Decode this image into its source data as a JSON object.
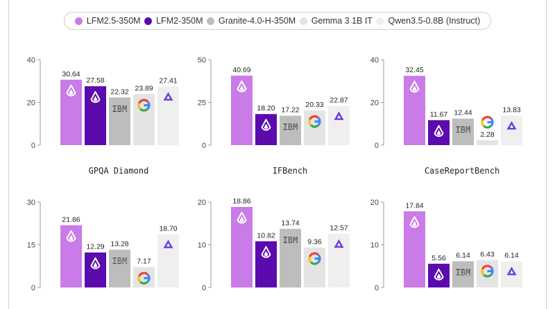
{
  "legend": {
    "items": [
      {
        "label": "LFM2.5-350M",
        "color": "#c97be8"
      },
      {
        "label": "LFM2-350M",
        "color": "#5a0aad"
      },
      {
        "label": "Granite-4.0-H-350M",
        "color": "#bdbdbd"
      },
      {
        "label": "Gemma 3 1B IT",
        "color": "#e4e4e4"
      },
      {
        "label": "Qwen3.5-0.8B (Instruct)",
        "color": "#efefef"
      }
    ]
  },
  "model_icons": [
    "liquid-logo-icon",
    "liquid-logo-icon",
    "ibm-logo-icon",
    "google-logo-icon",
    "qwen-logo-icon"
  ],
  "chart_data": [
    {
      "type": "bar",
      "title": "GPQA Diamond",
      "categories": [
        "LFM2.5-350M",
        "LFM2-350M",
        "Granite-4.0-H-350M",
        "Gemma 3 1B IT",
        "Qwen3.5-0.8B (Instruct)"
      ],
      "values": [
        30.64,
        27.58,
        22.32,
        23.89,
        27.41
      ],
      "value_labels": [
        "30.64",
        "27.58",
        "22.32",
        "23.89",
        "27.41"
      ],
      "yticks": [
        "0",
        "20",
        "40"
      ],
      "ylim": [
        0,
        40
      ],
      "grid": false
    },
    {
      "type": "bar",
      "title": "IFBench",
      "categories": [
        "LFM2.5-350M",
        "LFM2-350M",
        "Granite-4.0-H-350M",
        "Gemma 3 1B IT",
        "Qwen3.5-0.8B (Instruct)"
      ],
      "values": [
        40.69,
        18.2,
        17.22,
        20.33,
        22.87
      ],
      "value_labels": [
        "40.69",
        "18.20",
        "17.22",
        "20.33",
        "22.87"
      ],
      "yticks": [
        "0",
        "25",
        "50"
      ],
      "ylim": [
        0,
        50
      ],
      "grid": false
    },
    {
      "type": "bar",
      "title": "CaseReportBench",
      "categories": [
        "LFM2.5-350M",
        "LFM2-350M",
        "Granite-4.0-H-350M",
        "Gemma 3 1B IT",
        "Qwen3.5-0.8B (Instruct)"
      ],
      "values": [
        32.45,
        11.67,
        12.44,
        2.28,
        13.83
      ],
      "value_labels": [
        "32.45",
        "11.67",
        "12.44",
        "2.28",
        "13.83"
      ],
      "yticks": [
        "0",
        "20",
        "40"
      ],
      "ylim": [
        0,
        40
      ],
      "grid": false
    },
    {
      "type": "bar",
      "title": "",
      "categories": [
        "LFM2.5-350M",
        "LFM2-350M",
        "Granite-4.0-H-350M",
        "Gemma 3 1B IT",
        "Qwen3.5-0.8B (Instruct)"
      ],
      "values": [
        21.86,
        12.29,
        13.28,
        7.17,
        18.7
      ],
      "value_labels": [
        "21.86",
        "12.29",
        "13.28",
        "7.17",
        "18.70"
      ],
      "yticks": [
        "0",
        "15",
        "30"
      ],
      "ylim": [
        0,
        30
      ],
      "grid": false
    },
    {
      "type": "bar",
      "title": "",
      "categories": [
        "LFM2.5-350M",
        "LFM2-350M",
        "Granite-4.0-H-350M",
        "Gemma 3 1B IT",
        "Qwen3.5-0.8B (Instruct)"
      ],
      "values": [
        18.86,
        10.82,
        13.74,
        9.36,
        12.57
      ],
      "value_labels": [
        "18.86",
        "10.82",
        "13.74",
        "9.36",
        "12.57"
      ],
      "yticks": [
        "0",
        "10",
        "20"
      ],
      "ylim": [
        0,
        20
      ],
      "grid": false
    },
    {
      "type": "bar",
      "title": "",
      "categories": [
        "LFM2.5-350M",
        "LFM2-350M",
        "Granite-4.0-H-350M",
        "Gemma 3 1B IT",
        "Qwen3.5-0.8B (Instruct)"
      ],
      "values": [
        17.84,
        5.56,
        6.14,
        6.43,
        6.14
      ],
      "value_labels": [
        "17.84",
        "5.56",
        "6.14",
        "6.43",
        "6.14"
      ],
      "yticks": [
        "0",
        "10",
        "20"
      ],
      "ylim": [
        0,
        20
      ],
      "grid": false
    }
  ]
}
